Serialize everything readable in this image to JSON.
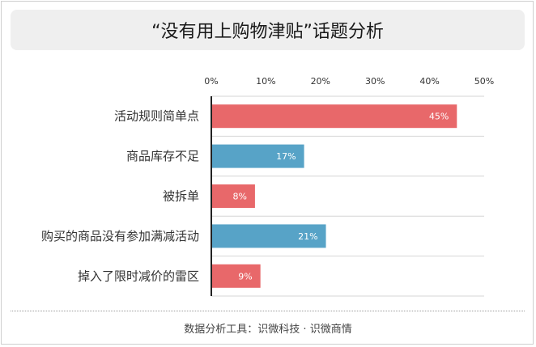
{
  "title": "“没有用上购物津贴”话题分析",
  "footer": "数据分析工具：识微科技 · 识微商情",
  "chart_data": {
    "type": "bar",
    "orientation": "horizontal",
    "title": "“没有用上购物津贴”话题分析",
    "categories": [
      "活动规则简单点",
      "商品库存不足",
      "被拆单",
      "购买的商品没有参加满减活动",
      "掉入了限时减价的雷区"
    ],
    "values": [
      45,
      17,
      8,
      21,
      9
    ],
    "value_labels": [
      "45%",
      "17%",
      "8%",
      "21%",
      "9%"
    ],
    "bar_colors": [
      "#e8686a",
      "#57a3c7",
      "#e8686a",
      "#57a3c7",
      "#e8686a"
    ],
    "xlim": [
      0,
      50
    ],
    "x_ticks": [
      "0%",
      "10%",
      "20%",
      "30%",
      "40%",
      "50%"
    ],
    "x_axis_position": "top",
    "grid": "horizontal row separators",
    "legend": "none"
  }
}
